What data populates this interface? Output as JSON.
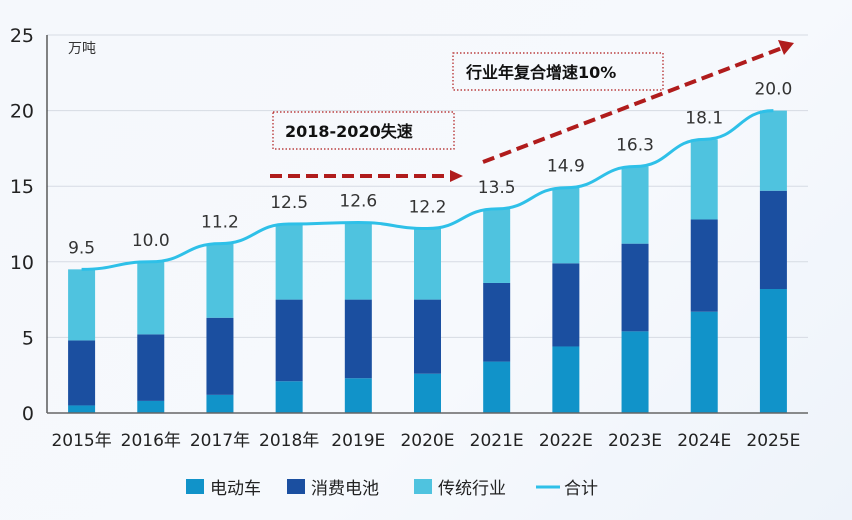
{
  "chart_data": {
    "type": "bar",
    "stacked": true,
    "title": "",
    "unit_label": "万吨",
    "xlabel": "",
    "ylabel": "万吨",
    "ylim": [
      0,
      25
    ],
    "yticks": [
      0,
      5,
      10,
      15,
      20,
      25
    ],
    "grid": true,
    "categories": [
      "2015年",
      "2016年",
      "2017年",
      "2018年",
      "2019E",
      "2020E",
      "2021E",
      "2022E",
      "2023E",
      "2024E",
      "2025E"
    ],
    "series": [
      {
        "name": "电动车",
        "type": "bar",
        "color": "#1193c9",
        "values": [
          0.5,
          0.8,
          1.2,
          2.1,
          2.3,
          2.6,
          3.4,
          4.4,
          5.4,
          6.7,
          8.2
        ]
      },
      {
        "name": "消费电池",
        "type": "bar",
        "color": "#1b4fa0",
        "values": [
          4.3,
          4.4,
          5.1,
          5.4,
          5.2,
          4.9,
          5.2,
          5.5,
          5.8,
          6.1,
          6.5
        ]
      },
      {
        "name": "传统行业",
        "type": "bar",
        "color": "#4fc3df",
        "values": [
          4.7,
          4.8,
          4.9,
          5.0,
          5.1,
          4.7,
          4.9,
          5.0,
          5.1,
          5.3,
          5.3
        ]
      },
      {
        "name": "合计",
        "type": "line",
        "color": "#2ec0e8",
        "values": [
          9.5,
          10.0,
          11.2,
          12.5,
          12.6,
          12.2,
          13.5,
          14.9,
          16.3,
          18.1,
          20.0
        ]
      }
    ],
    "data_labels": [
      "9.5",
      "10.0",
      "11.2",
      "12.5",
      "12.6",
      "12.2",
      "13.5",
      "14.9",
      "16.3",
      "18.1",
      "20.0"
    ],
    "annotations": [
      {
        "text": "2018-2020失速",
        "arrow": "flat",
        "from_category": "2018年",
        "to_category": "2020E"
      },
      {
        "text": "行业年复合增速10%",
        "arrow": "rising",
        "from_category": "2021E",
        "to_category": "2025E"
      }
    ],
    "annotation_color": "#b01c1c",
    "legend": {
      "position": "bottom",
      "entries": [
        "电动车",
        "消费电池",
        "传统行业",
        "合计"
      ]
    }
  }
}
